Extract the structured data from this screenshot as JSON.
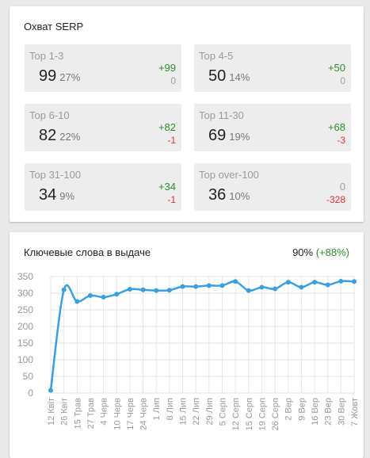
{
  "serp": {
    "title": "Охват SERP",
    "tiles": [
      {
        "label": "Top 1-3",
        "value": "99",
        "pct": "27%",
        "delta1": "+99",
        "delta2": "0",
        "d1": "pos",
        "d2": "zero"
      },
      {
        "label": "Top 4-5",
        "value": "50",
        "pct": "14%",
        "delta1": "+50",
        "delta2": "0",
        "d1": "pos",
        "d2": "zero"
      },
      {
        "label": "Top 6-10",
        "value": "82",
        "pct": "22%",
        "delta1": "+82",
        "delta2": "-1",
        "d1": "pos",
        "d2": "neg"
      },
      {
        "label": "Top 11-30",
        "value": "69",
        "pct": "19%",
        "delta1": "+68",
        "delta2": "-3",
        "d1": "pos",
        "d2": "neg"
      },
      {
        "label": "Top 31-100",
        "value": "34",
        "pct": "9%",
        "delta1": "+34",
        "delta2": "-1",
        "d1": "pos",
        "d2": "neg"
      },
      {
        "label": "Top over-100",
        "value": "36",
        "pct": "10%",
        "delta1": "0",
        "delta2": "-328",
        "d1": "zero",
        "d2": "neg"
      }
    ]
  },
  "keywords": {
    "title": "Ключевые слова в выдаче",
    "summary_pct": "90%",
    "summary_delta": "(+88%)",
    "accent_color": "#3a9fe0"
  },
  "chart_data": {
    "type": "line",
    "title": "",
    "xlabel": "",
    "ylabel": "",
    "ylim": [
      0,
      350
    ],
    "yticks": [
      0,
      50,
      100,
      150,
      200,
      250,
      300,
      350
    ],
    "grid": true,
    "categories": [
      "12 Квіт",
      "26 Квіт",
      "15 Трав",
      "27 Трав",
      "4 Черв",
      "10 Черв",
      "17 Черв",
      "24 Черв",
      "1 Лип",
      "8 Лип",
      "15 Лип",
      "22 Лип",
      "29 Лип",
      "5 Серп",
      "12 Серп",
      "15 Серп",
      "19 Серп",
      "26 Серп",
      "2 Вер",
      "9 Вер",
      "16 Вер",
      "23 Вер",
      "30 Вер",
      "7 Жовт"
    ],
    "tick_labels": [
      "12 Квіт",
      "26 Квіт",
      "15 Трав",
      "27 Трав",
      "4 Черв",
      "10 Черв",
      "17 Черв",
      "24 Черв",
      "1 Лип",
      "8 Лип",
      "15 Лип",
      "22 Лип",
      "29 Лип",
      "5 Серп",
      "12 Серп",
      "15 Серп",
      "19 Серп",
      "26 Серп",
      "2 Вер",
      "9 Вер",
      "16 Вер",
      "23 Вер",
      "30 Вер",
      "7 Жовт"
    ],
    "series": [
      {
        "values": [
          8,
          310,
          275,
          293,
          288,
          297,
          312,
          310,
          308,
          309,
          320,
          320,
          323,
          323,
          335,
          308,
          318,
          313,
          333,
          318,
          333,
          325,
          336,
          335
        ]
      }
    ]
  }
}
